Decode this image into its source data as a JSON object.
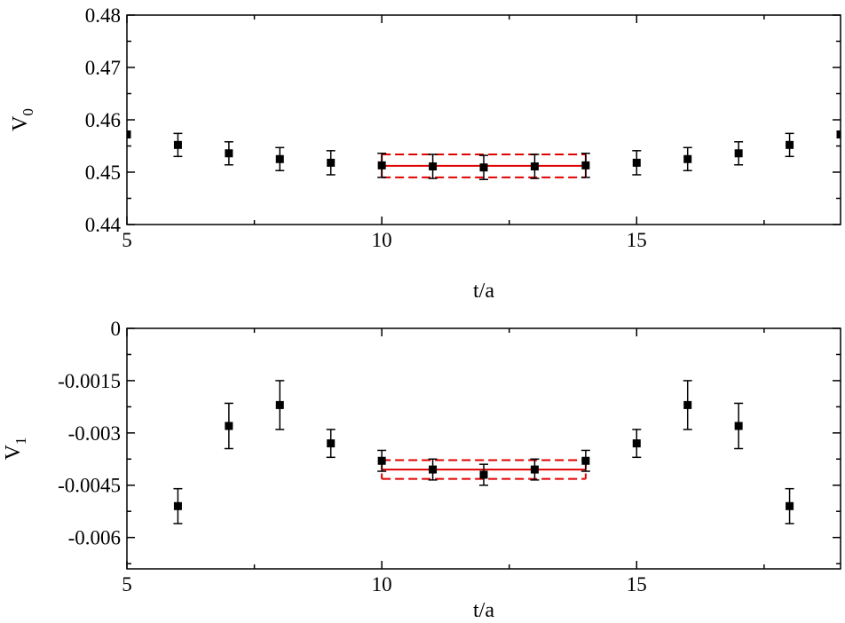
{
  "chart_data": [
    {
      "type": "scatter",
      "xlabel": "t/a",
      "ylabel": "V",
      "ylabel_subscript": "0",
      "xlim": [
        5,
        19
      ],
      "ylim": [
        0.44,
        0.48
      ],
      "x_ticks": [
        5,
        10,
        15
      ],
      "x_tick_labels": [
        "5",
        "10",
        "15"
      ],
      "x_minor_ticks": [
        7.5,
        12.5,
        17.5
      ],
      "y_ticks": [
        0.44,
        0.45,
        0.46,
        0.47,
        0.48
      ],
      "y_tick_labels": [
        "0.44",
        "0.45",
        "0.46",
        "0.47",
        "0.48"
      ],
      "y_minor_ticks": [
        0.445,
        0.455,
        0.465,
        0.475
      ],
      "grid": false,
      "series": [
        {
          "x": [
            5,
            6,
            7,
            8,
            9,
            10,
            11,
            12,
            13,
            14,
            15,
            16,
            17,
            18,
            19
          ],
          "y": [
            0.4572,
            0.4552,
            0.4536,
            0.4525,
            0.4518,
            0.4513,
            0.4511,
            0.4509,
            0.4511,
            0.4513,
            0.4518,
            0.4525,
            0.4536,
            0.4552,
            0.4572
          ],
          "err": [
            0,
            0.0022,
            0.0022,
            0.0022,
            0.0023,
            0.0023,
            0.0023,
            0.0023,
            0.0023,
            0.0023,
            0.0023,
            0.0022,
            0.0022,
            0.0022,
            0
          ]
        }
      ],
      "fit": {
        "x_range": [
          10,
          14
        ],
        "value": 0.4512,
        "band": [
          0.449,
          0.4534
        ],
        "color": "#e00000"
      }
    },
    {
      "type": "scatter",
      "xlabel": "t/a",
      "ylabel": "V",
      "ylabel_subscript": "1",
      "xlim": [
        5,
        19
      ],
      "ylim": [
        -0.0069,
        0
      ],
      "x_ticks": [
        5,
        10,
        15
      ],
      "x_tick_labels": [
        "5",
        "10",
        "15"
      ],
      "x_minor_ticks": [
        7.5,
        12.5,
        17.5
      ],
      "y_ticks": [
        0,
        -0.0015,
        -0.003,
        -0.0045,
        -0.006
      ],
      "y_tick_labels": [
        "0",
        "-0.0015",
        "-0.003",
        "-0.0045",
        "-0.006"
      ],
      "y_minor_ticks": [
        -0.00075,
        -0.00225,
        -0.00375,
        -0.00525,
        -0.00675
      ],
      "grid": false,
      "series": [
        {
          "x": [
            6,
            7,
            8,
            9,
            10,
            11,
            12,
            13,
            14,
            15,
            16,
            17,
            18
          ],
          "y": [
            -0.0051,
            -0.0028,
            -0.0022,
            -0.0033,
            -0.0038,
            -0.00405,
            -0.0042,
            -0.00405,
            -0.0038,
            -0.0033,
            -0.0022,
            -0.0028,
            -0.0051
          ],
          "err": [
            0.0005,
            0.00065,
            0.0007,
            0.0004,
            0.0003,
            0.0003,
            0.0003,
            0.0003,
            0.0003,
            0.0004,
            0.0007,
            0.00065,
            0.0005
          ]
        }
      ],
      "fit": {
        "x_range": [
          10,
          14
        ],
        "value": -0.00405,
        "band": [
          -0.00378,
          -0.00432
        ],
        "color": "#e00000"
      }
    }
  ]
}
